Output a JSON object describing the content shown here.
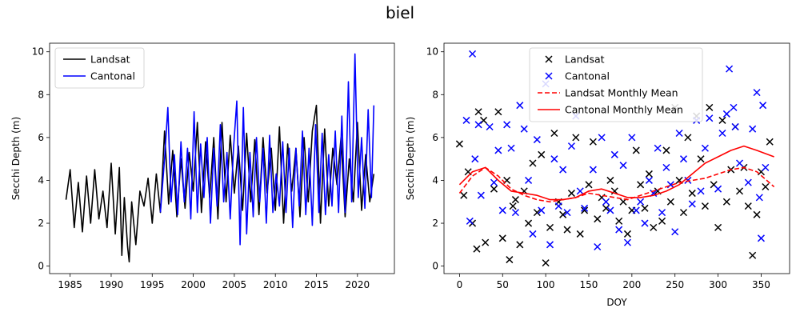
{
  "figure": {
    "title": "biel"
  },
  "chart_data": [
    {
      "type": "line",
      "xlabel": "",
      "ylabel": "Secchi Depth (m)",
      "xlim": [
        1982.5,
        2024.5
      ],
      "ylim": [
        -0.35,
        10.4
      ],
      "xticks": [
        1985,
        1990,
        1995,
        2000,
        2005,
        2010,
        2015,
        2020
      ],
      "yticks": [
        0,
        2,
        4,
        6,
        8,
        10
      ],
      "legend": "top-left",
      "series": [
        {
          "name": "Landsat",
          "color": "#000000",
          "x": [
            1984.5,
            1985.0,
            1985.5,
            1986.0,
            1986.5,
            1987.0,
            1987.5,
            1988.0,
            1988.5,
            1989.0,
            1989.5,
            1990.0,
            1990.5,
            1991.0,
            1991.3,
            1991.6,
            1992.0,
            1992.2,
            1992.5,
            1993.0,
            1993.5,
            1994.0,
            1994.5,
            1995.0,
            1995.5,
            1996.0,
            1996.5,
            1997.0,
            1997.5,
            1998.0,
            1998.5,
            1999.0,
            1999.5,
            2000.0,
            2000.5,
            2001.0,
            2001.5,
            2002.0,
            2002.5,
            2003.0,
            2003.5,
            2004.0,
            2004.5,
            2005.0,
            2005.5,
            2006.0,
            2006.5,
            2007.0,
            2007.5,
            2008.0,
            2008.5,
            2009.0,
            2009.5,
            2010.0,
            2010.5,
            2011.0,
            2011.5,
            2012.0,
            2012.5,
            2013.0,
            2013.5,
            2014.0,
            2014.5,
            2015.0,
            2015.5,
            2016.0,
            2016.5,
            2017.0,
            2017.5,
            2018.0,
            2018.5,
            2019.0,
            2019.5,
            2020.0,
            2020.5,
            2021.0,
            2021.5,
            2022.0
          ],
          "y": [
            3.1,
            4.5,
            1.8,
            3.9,
            1.6,
            4.2,
            2.0,
            4.5,
            2.2,
            3.5,
            1.8,
            4.8,
            1.5,
            4.6,
            0.5,
            3.2,
            0.9,
            0.2,
            3.0,
            1.0,
            3.5,
            2.8,
            4.1,
            2.0,
            4.3,
            2.5,
            6.3,
            2.9,
            5.4,
            2.3,
            5.0,
            2.7,
            5.3,
            3.5,
            6.7,
            2.5,
            5.8,
            3.2,
            6.0,
            2.2,
            6.7,
            3.0,
            6.1,
            3.4,
            5.6,
            2.6,
            6.2,
            3.0,
            5.9,
            2.4,
            6.0,
            3.4,
            5.5,
            2.6,
            6.5,
            2.0,
            5.7,
            3.5,
            5.5,
            2.3,
            6.0,
            3.0,
            6.3,
            7.5,
            2.0,
            6.4,
            2.8,
            5.5,
            3.8,
            6.0,
            2.3,
            5.0,
            3.0,
            6.7,
            2.6,
            5.2,
            3.0,
            4.3
          ]
        },
        {
          "name": "Cantonal",
          "color": "#0000ff",
          "x": [
            1996.0,
            1996.5,
            1996.9,
            1997.3,
            1997.7,
            1998.1,
            1998.5,
            1998.9,
            1999.3,
            1999.7,
            2000.1,
            2000.5,
            2000.9,
            2001.3,
            2001.7,
            2002.1,
            2002.5,
            2002.9,
            2003.3,
            2003.7,
            2004.1,
            2004.5,
            2004.9,
            2005.3,
            2005.7,
            2006.1,
            2006.5,
            2006.9,
            2007.3,
            2007.7,
            2008.1,
            2008.5,
            2008.9,
            2009.3,
            2009.7,
            2010.1,
            2010.5,
            2010.9,
            2011.3,
            2011.7,
            2012.1,
            2012.5,
            2012.9,
            2013.3,
            2013.7,
            2014.1,
            2014.5,
            2014.9,
            2015.3,
            2015.7,
            2016.1,
            2016.5,
            2016.9,
            2017.3,
            2017.7,
            2018.1,
            2018.5,
            2018.9,
            2019.3,
            2019.7,
            2020.1,
            2020.5,
            2020.9,
            2021.3,
            2021.7,
            2022.0
          ],
          "y": [
            2.5,
            5.0,
            7.4,
            3.0,
            5.2,
            2.4,
            5.8,
            3.0,
            5.5,
            2.2,
            7.2,
            2.5,
            5.7,
            3.2,
            6.0,
            2.0,
            5.5,
            2.8,
            6.6,
            3.0,
            5.3,
            2.2,
            5.5,
            7.7,
            1.0,
            7.4,
            1.5,
            5.3,
            2.3,
            6.0,
            3.0,
            5.5,
            2.0,
            6.1,
            2.5,
            4.3,
            2.8,
            5.8,
            2.5,
            5.5,
            1.8,
            5.5,
            2.8,
            6.3,
            2.4,
            5.5,
            1.9,
            6.6,
            2.5,
            6.2,
            2.4,
            5.2,
            2.8,
            6.3,
            2.5,
            7.0,
            2.5,
            8.6,
            3.0,
            9.9,
            3.2,
            6.0,
            2.7,
            7.3,
            3.2,
            7.5
          ]
        }
      ]
    },
    {
      "type": "scatter",
      "xlabel": "DOY",
      "ylabel": "Secchi Depth (m)",
      "xlim": [
        -18,
        383
      ],
      "ylim": [
        -0.35,
        10.4
      ],
      "xticks": [
        0,
        50,
        100,
        150,
        200,
        250,
        300,
        350
      ],
      "yticks": [
        0,
        2,
        4,
        6,
        8,
        10
      ],
      "legend": "top-center",
      "series": [
        {
          "name": "Landsat",
          "mark": "x",
          "color": "#000000",
          "points": [
            [
              0,
              5.7
            ],
            [
              5,
              3.3
            ],
            [
              10,
              4.4
            ],
            [
              15,
              2.0
            ],
            [
              20,
              0.8
            ],
            [
              22,
              7.2
            ],
            [
              28,
              6.8
            ],
            [
              30,
              1.1
            ],
            [
              40,
              3.6
            ],
            [
              45,
              7.2
            ],
            [
              50,
              1.3
            ],
            [
              55,
              4.0
            ],
            [
              58,
              0.3
            ],
            [
              62,
              2.8
            ],
            [
              65,
              3.1
            ],
            [
              70,
              1.0
            ],
            [
              75,
              3.5
            ],
            [
              80,
              2.0
            ],
            [
              85,
              4.8
            ],
            [
              90,
              2.5
            ],
            [
              95,
              5.2
            ],
            [
              100,
              0.15
            ],
            [
              105,
              1.8
            ],
            [
              110,
              6.2
            ],
            [
              115,
              3.0
            ],
            [
              120,
              2.4
            ],
            [
              125,
              1.7
            ],
            [
              130,
              3.4
            ],
            [
              135,
              6.0
            ],
            [
              140,
              1.5
            ],
            [
              145,
              2.6
            ],
            [
              150,
              3.8
            ],
            [
              155,
              5.8
            ],
            [
              160,
              2.2
            ],
            [
              165,
              3.2
            ],
            [
              170,
              2.7
            ],
            [
              175,
              4.0
            ],
            [
              180,
              3.5
            ],
            [
              185,
              2.1
            ],
            [
              190,
              3.0
            ],
            [
              195,
              1.5
            ],
            [
              200,
              2.6
            ],
            [
              205,
              5.4
            ],
            [
              210,
              3.8
            ],
            [
              215,
              2.7
            ],
            [
              220,
              4.3
            ],
            [
              225,
              1.8
            ],
            [
              230,
              3.5
            ],
            [
              235,
              2.1
            ],
            [
              240,
              5.4
            ],
            [
              245,
              3.0
            ],
            [
              250,
              7.4
            ],
            [
              255,
              4.0
            ],
            [
              260,
              2.5
            ],
            [
              265,
              6.0
            ],
            [
              270,
              3.4
            ],
            [
              275,
              7.0
            ],
            [
              280,
              5.0
            ],
            [
              285,
              2.8
            ],
            [
              290,
              7.4
            ],
            [
              295,
              3.8
            ],
            [
              300,
              1.8
            ],
            [
              305,
              6.8
            ],
            [
              310,
              3.0
            ],
            [
              315,
              4.5
            ],
            [
              320,
              6.5
            ],
            [
              325,
              3.5
            ],
            [
              330,
              4.6
            ],
            [
              335,
              2.8
            ],
            [
              340,
              0.5
            ],
            [
              345,
              2.4
            ],
            [
              350,
              4.4
            ],
            [
              355,
              3.7
            ],
            [
              360,
              5.8
            ]
          ]
        },
        {
          "name": "Cantonal",
          "mark": "x",
          "color": "#0000ff",
          "points": [
            [
              8,
              6.8
            ],
            [
              12,
              2.1
            ],
            [
              15,
              9.9
            ],
            [
              18,
              5.0
            ],
            [
              22,
              6.6
            ],
            [
              25,
              3.3
            ],
            [
              35,
              6.5
            ],
            [
              40,
              3.9
            ],
            [
              45,
              5.4
            ],
            [
              50,
              2.6
            ],
            [
              55,
              6.6
            ],
            [
              60,
              5.5
            ],
            [
              65,
              2.5
            ],
            [
              70,
              7.5
            ],
            [
              75,
              6.4
            ],
            [
              80,
              4.0
            ],
            [
              85,
              1.5
            ],
            [
              90,
              5.9
            ],
            [
              95,
              2.6
            ],
            [
              100,
              8.5
            ],
            [
              105,
              1.0
            ],
            [
              110,
              5.0
            ],
            [
              115,
              2.8
            ],
            [
              120,
              4.5
            ],
            [
              125,
              2.5
            ],
            [
              130,
              5.6
            ],
            [
              135,
              7.0
            ],
            [
              140,
              3.5
            ],
            [
              145,
              2.7
            ],
            [
              155,
              4.5
            ],
            [
              160,
              0.9
            ],
            [
              165,
              6.0
            ],
            [
              170,
              3.0
            ],
            [
              175,
              2.6
            ],
            [
              180,
              5.2
            ],
            [
              185,
              1.7
            ],
            [
              190,
              4.7
            ],
            [
              195,
              1.1
            ],
            [
              200,
              6.0
            ],
            [
              205,
              2.6
            ],
            [
              210,
              3.0
            ],
            [
              215,
              2.0
            ],
            [
              220,
              4.0
            ],
            [
              225,
              3.4
            ],
            [
              230,
              5.5
            ],
            [
              235,
              2.5
            ],
            [
              240,
              4.6
            ],
            [
              245,
              3.8
            ],
            [
              250,
              1.6
            ],
            [
              255,
              6.2
            ],
            [
              260,
              5.0
            ],
            [
              265,
              4.0
            ],
            [
              270,
              2.9
            ],
            [
              275,
              6.8
            ],
            [
              280,
              3.5
            ],
            [
              285,
              5.5
            ],
            [
              290,
              6.9
            ],
            [
              300,
              3.6
            ],
            [
              305,
              6.2
            ],
            [
              310,
              7.1
            ],
            [
              313,
              9.2
            ],
            [
              318,
              7.4
            ],
            [
              320,
              6.5
            ],
            [
              325,
              4.8
            ],
            [
              335,
              3.9
            ],
            [
              340,
              6.4
            ],
            [
              345,
              8.1
            ],
            [
              348,
              3.2
            ],
            [
              350,
              1.3
            ],
            [
              352,
              7.5
            ],
            [
              355,
              4.6
            ]
          ]
        },
        {
          "name": "Landsat Monthly Mean",
          "mark": "dashed-line",
          "color": "#ff0000",
          "x": [
            0,
            15,
            30,
            45,
            60,
            75,
            90,
            105,
            120,
            135,
            150,
            165,
            180,
            195,
            210,
            225,
            240,
            255,
            270,
            285,
            300,
            315,
            330,
            345,
            365
          ],
          "y": [
            3.4,
            4.2,
            4.6,
            4.2,
            3.6,
            3.3,
            3.1,
            3.0,
            3.1,
            3.2,
            3.4,
            3.3,
            3.2,
            3.1,
            3.3,
            3.5,
            3.7,
            3.9,
            4.0,
            4.1,
            4.3,
            4.5,
            4.6,
            4.4,
            3.7
          ]
        },
        {
          "name": "Cantonal Monthly Mean",
          "mark": "line",
          "color": "#ff0000",
          "x": [
            0,
            15,
            30,
            45,
            60,
            75,
            90,
            105,
            120,
            135,
            150,
            165,
            180,
            195,
            210,
            225,
            240,
            255,
            270,
            285,
            300,
            315,
            330,
            345,
            365
          ],
          "y": [
            3.8,
            4.4,
            4.6,
            4.0,
            3.5,
            3.4,
            3.3,
            3.1,
            3.1,
            3.2,
            3.5,
            3.6,
            3.4,
            3.2,
            3.2,
            3.3,
            3.5,
            3.8,
            4.3,
            4.8,
            5.1,
            5.4,
            5.6,
            5.4,
            5.1
          ]
        }
      ]
    }
  ]
}
